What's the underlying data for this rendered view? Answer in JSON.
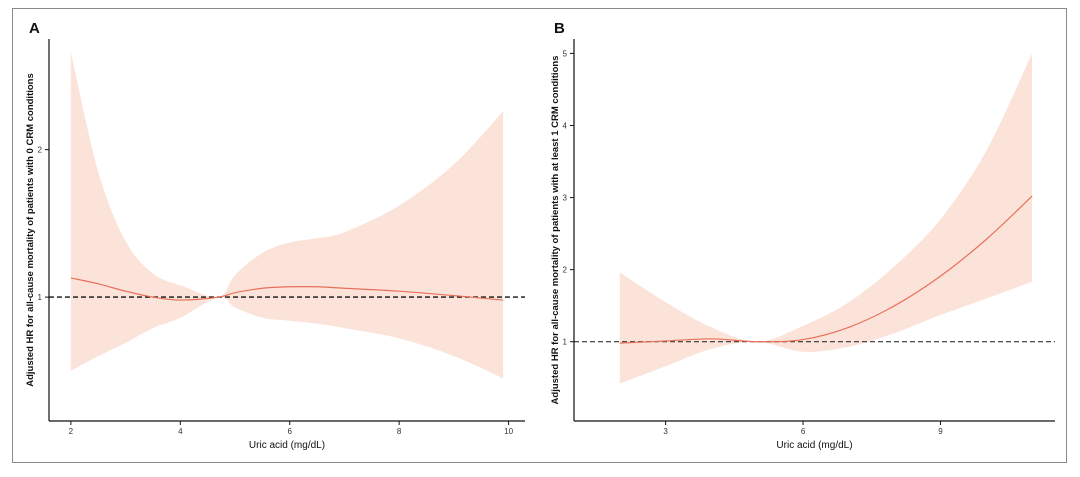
{
  "chart_data": [
    {
      "panel": "A",
      "type": "line",
      "xlabel": "Uric acid (mg/dL)",
      "ylabel": "Adjusted HR for all-cause mortality of patients with 0 CRM conditions",
      "xlim": [
        1.6,
        10.3
      ],
      "ylim": [
        0.16,
        2.75
      ],
      "xticks": [
        2,
        4,
        6,
        8,
        10
      ],
      "yticks": [
        1,
        2
      ],
      "reference_line": 1,
      "grid": false,
      "colors": {
        "line": "#e8705a",
        "band": "#fbe3d9",
        "reference": "#111111"
      },
      "series": [
        {
          "x": [
            2.0,
            2.5,
            3.0,
            3.5,
            4.0,
            4.7,
            5.0,
            5.5,
            6.0,
            6.5,
            7.0,
            8.0,
            9.0,
            9.9
          ],
          "y": [
            1.13,
            1.09,
            1.04,
            1.0,
            0.98,
            1.0,
            1.03,
            1.06,
            1.07,
            1.07,
            1.06,
            1.04,
            1.01,
            0.98
          ],
          "lower": [
            0.5,
            0.6,
            0.69,
            0.79,
            0.86,
            1.0,
            0.93,
            0.86,
            0.84,
            0.82,
            0.79,
            0.72,
            0.6,
            0.45
          ],
          "upper": [
            2.66,
            1.85,
            1.38,
            1.16,
            1.08,
            1.0,
            1.15,
            1.3,
            1.37,
            1.4,
            1.44,
            1.62,
            1.9,
            2.26
          ]
        }
      ]
    },
    {
      "panel": "B",
      "type": "line",
      "xlabel": "Uric acid (mg/dL)",
      "ylabel": "Adjusted HR for all-cause mortality of patients with at least 1 CRM conditions",
      "xlim": [
        1.0,
        11.5
      ],
      "ylim": [
        -0.1,
        5.2
      ],
      "xticks": [
        3,
        6,
        9
      ],
      "yticks": [
        1,
        2,
        3,
        4,
        5
      ],
      "reference_line": 1,
      "grid": false,
      "colors": {
        "line": "#e8705a",
        "band": "#fbe3d9",
        "reference": "#333333"
      },
      "series": [
        {
          "x": [
            2.0,
            3.0,
            4.0,
            5.0,
            6.0,
            7.0,
            8.0,
            9.0,
            10.0,
            11.0
          ],
          "y": [
            0.98,
            1.01,
            1.04,
            1.0,
            1.03,
            1.2,
            1.5,
            1.91,
            2.42,
            3.02
          ],
          "lower": [
            0.42,
            0.66,
            0.9,
            1.0,
            0.86,
            0.93,
            1.12,
            1.37,
            1.6,
            1.83
          ],
          "upper": [
            1.96,
            1.55,
            1.2,
            1.0,
            1.22,
            1.55,
            2.05,
            2.7,
            3.65,
            5.0
          ]
        }
      ]
    }
  ]
}
